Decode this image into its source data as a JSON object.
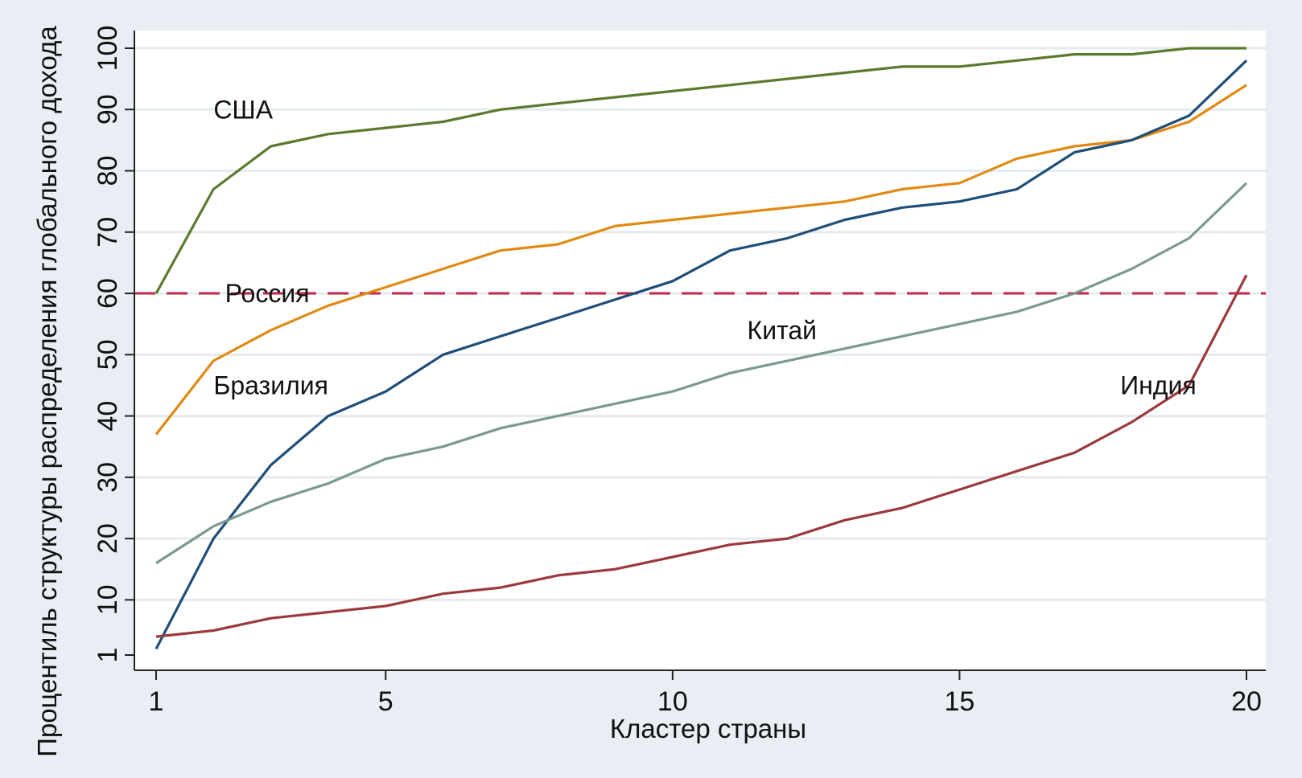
{
  "chart_data": {
    "type": "line",
    "xlabel": "Кластер страны",
    "ylabel": "Процентиль структуры распределения глобального дохода",
    "xlim": [
      1,
      20
    ],
    "ylim": [
      1,
      100
    ],
    "xticks": [
      1,
      5,
      10,
      15,
      20
    ],
    "yticks": [
      1,
      10,
      20,
      30,
      40,
      50,
      60,
      70,
      80,
      90,
      100
    ],
    "grid": "horizontal",
    "reference_line": {
      "y": 60,
      "style": "dashed",
      "color": "#c0254a"
    },
    "x": [
      1,
      2,
      3,
      4,
      5,
      6,
      7,
      8,
      9,
      10,
      11,
      12,
      13,
      14,
      15,
      16,
      17,
      18,
      19,
      20
    ],
    "series": [
      {
        "name": "США",
        "color": "#5b7a2e",
        "values": [
          60,
          77,
          84,
          86,
          87,
          88,
          90,
          91,
          92,
          93,
          94,
          95,
          96,
          97,
          97,
          98,
          99,
          99,
          100,
          100
        ]
      },
      {
        "name": "Россия",
        "color": "#e08a12",
        "values": [
          37,
          49,
          54,
          58,
          61,
          64,
          67,
          68,
          71,
          72,
          73,
          74,
          75,
          77,
          78,
          82,
          84,
          85,
          88,
          94
        ]
      },
      {
        "name": "Бразилия",
        "color": "#1f4e79",
        "values": [
          2,
          20,
          32,
          40,
          44,
          50,
          53,
          56,
          59,
          62,
          67,
          69,
          72,
          74,
          75,
          77,
          83,
          85,
          89,
          98
        ]
      },
      {
        "name": "Китай",
        "color": "#7a9a8c",
        "values": [
          16,
          22,
          26,
          29,
          33,
          35,
          38,
          40,
          42,
          44,
          47,
          49,
          51,
          53,
          55,
          57,
          60,
          64,
          69,
          78
        ]
      },
      {
        "name": "Индия",
        "color": "#9b3a3e",
        "values": [
          4,
          5,
          7,
          8,
          9,
          11,
          12,
          14,
          15,
          17,
          19,
          20,
          23,
          25,
          28,
          31,
          34,
          39,
          45,
          63
        ]
      }
    ],
    "annotations": [
      {
        "text": "США",
        "x": 2.0,
        "y": 90
      },
      {
        "text": "Россия",
        "x": 2.2,
        "y": 60
      },
      {
        "text": "Бразилия",
        "x": 2.0,
        "y": 45
      },
      {
        "text": "Китай",
        "x": 11.3,
        "y": 54
      },
      {
        "text": "Индия",
        "x": 17.8,
        "y": 45
      }
    ]
  }
}
